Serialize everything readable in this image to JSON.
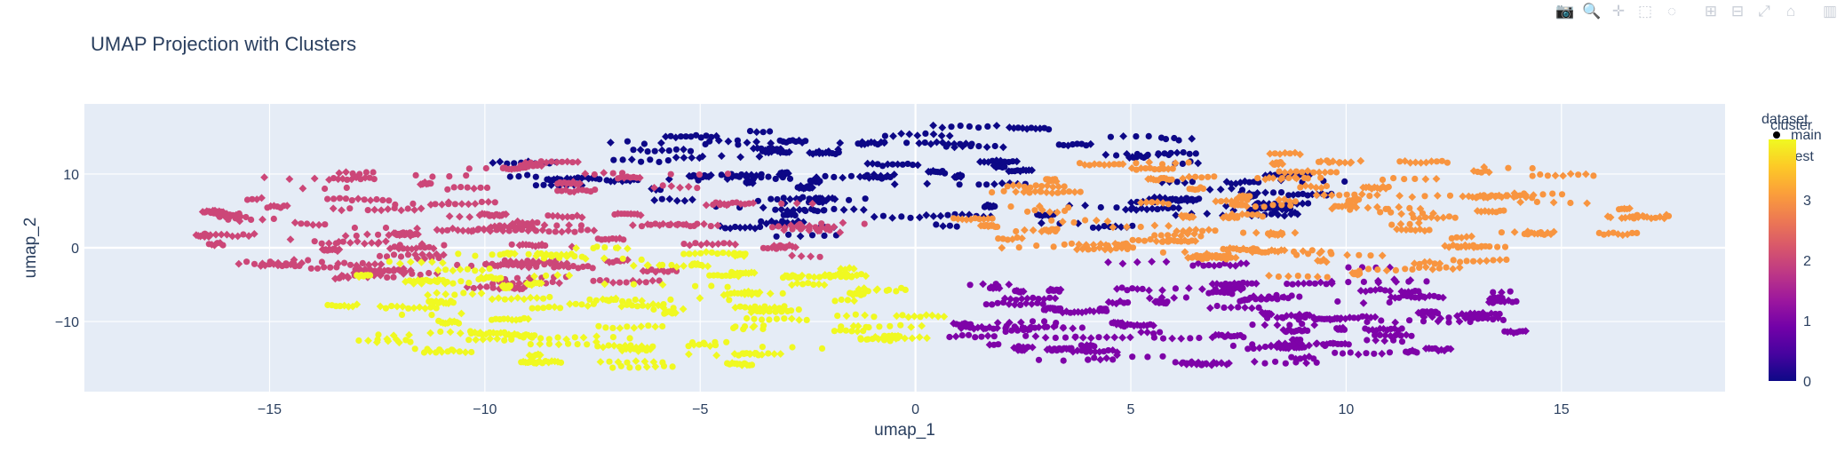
{
  "modebar": {
    "buttons": [
      {
        "icon": "camera-icon",
        "glyph": "📷",
        "group": 1
      },
      {
        "icon": "zoom-icon",
        "glyph": "🔍",
        "group": 1
      },
      {
        "icon": "pan-icon",
        "glyph": "✛",
        "group": 1
      },
      {
        "icon": "box-select-icon",
        "glyph": "⬚",
        "group": 1
      },
      {
        "icon": "lasso-select-icon",
        "glyph": "◌",
        "group": 1
      },
      {
        "icon": "zoom-in-icon",
        "glyph": "⊞",
        "group": 2
      },
      {
        "icon": "zoom-out-icon",
        "glyph": "⊟",
        "group": 2
      },
      {
        "icon": "autoscale-icon",
        "glyph": "⤢",
        "group": 2
      },
      {
        "icon": "reset-axes-icon",
        "glyph": "⌂",
        "group": 2
      },
      {
        "icon": "plotly-logo-icon",
        "glyph": "▥",
        "group": 3
      }
    ]
  },
  "chart_data": {
    "type": "scatter",
    "title": "UMAP Projection with Clusters",
    "xlabel": "umap_1",
    "ylabel": "umap_2",
    "xlim": [
      -19.3,
      18.8
    ],
    "ylim": [
      -19.5,
      19.5
    ],
    "x_ticks": [
      -15,
      -10,
      -5,
      0,
      5,
      10,
      15
    ],
    "x_tick_labels": [
      "−15",
      "−10",
      "−5",
      "0",
      "5",
      "10",
      "15"
    ],
    "y_ticks": [
      -10,
      0,
      10
    ],
    "y_tick_labels": [
      "−10",
      "0",
      "10"
    ],
    "grid": true,
    "plot_background": "#e5ecf6",
    "legend": {
      "title": "dataset",
      "position": "top-right",
      "entries": [
        {
          "name": "main",
          "symbol": "circle"
        },
        {
          "name": "test",
          "symbol": "diamond"
        }
      ]
    },
    "colorbar": {
      "title": "cluster",
      "min": 0,
      "max": 4,
      "ticks": [
        0,
        1,
        2,
        3
      ],
      "colorscale": [
        "#0d0887",
        "#46039f",
        "#7201a8",
        "#9c179e",
        "#bd3786",
        "#d8576b",
        "#ed7953",
        "#fb9f3a",
        "#fdca26",
        "#f0f921"
      ]
    },
    "clusters": [
      {
        "cluster": 0,
        "color": "#0d0887",
        "x_range": [
          -9.8,
          10.0
        ],
        "y_range": [
          1.0,
          16.5
        ],
        "center": [
          0.5,
          8.5
        ]
      },
      {
        "cluster": 1,
        "color": "#7e03a8",
        "x_range": [
          0.3,
          14.5
        ],
        "y_range": [
          -16.5,
          -1.5
        ],
        "center": [
          5.5,
          -7.0
        ]
      },
      {
        "cluster": 2,
        "color": "#cc4778",
        "x_range": [
          -16.9,
          -1.5
        ],
        "y_range": [
          -5.5,
          12.0
        ],
        "center": [
          -9.0,
          2.5
        ]
      },
      {
        "cluster": 3,
        "color": "#f89540",
        "x_range": [
          0.8,
          17.0
        ],
        "y_range": [
          -4.0,
          13.0
        ],
        "center": [
          9.0,
          2.5
        ]
      },
      {
        "cluster": 4,
        "color": "#f0f921",
        "x_range": [
          -14.0,
          0.5
        ],
        "y_range": [
          -16.5,
          0.5
        ],
        "center": [
          -5.5,
          -7.0
        ]
      }
    ]
  }
}
